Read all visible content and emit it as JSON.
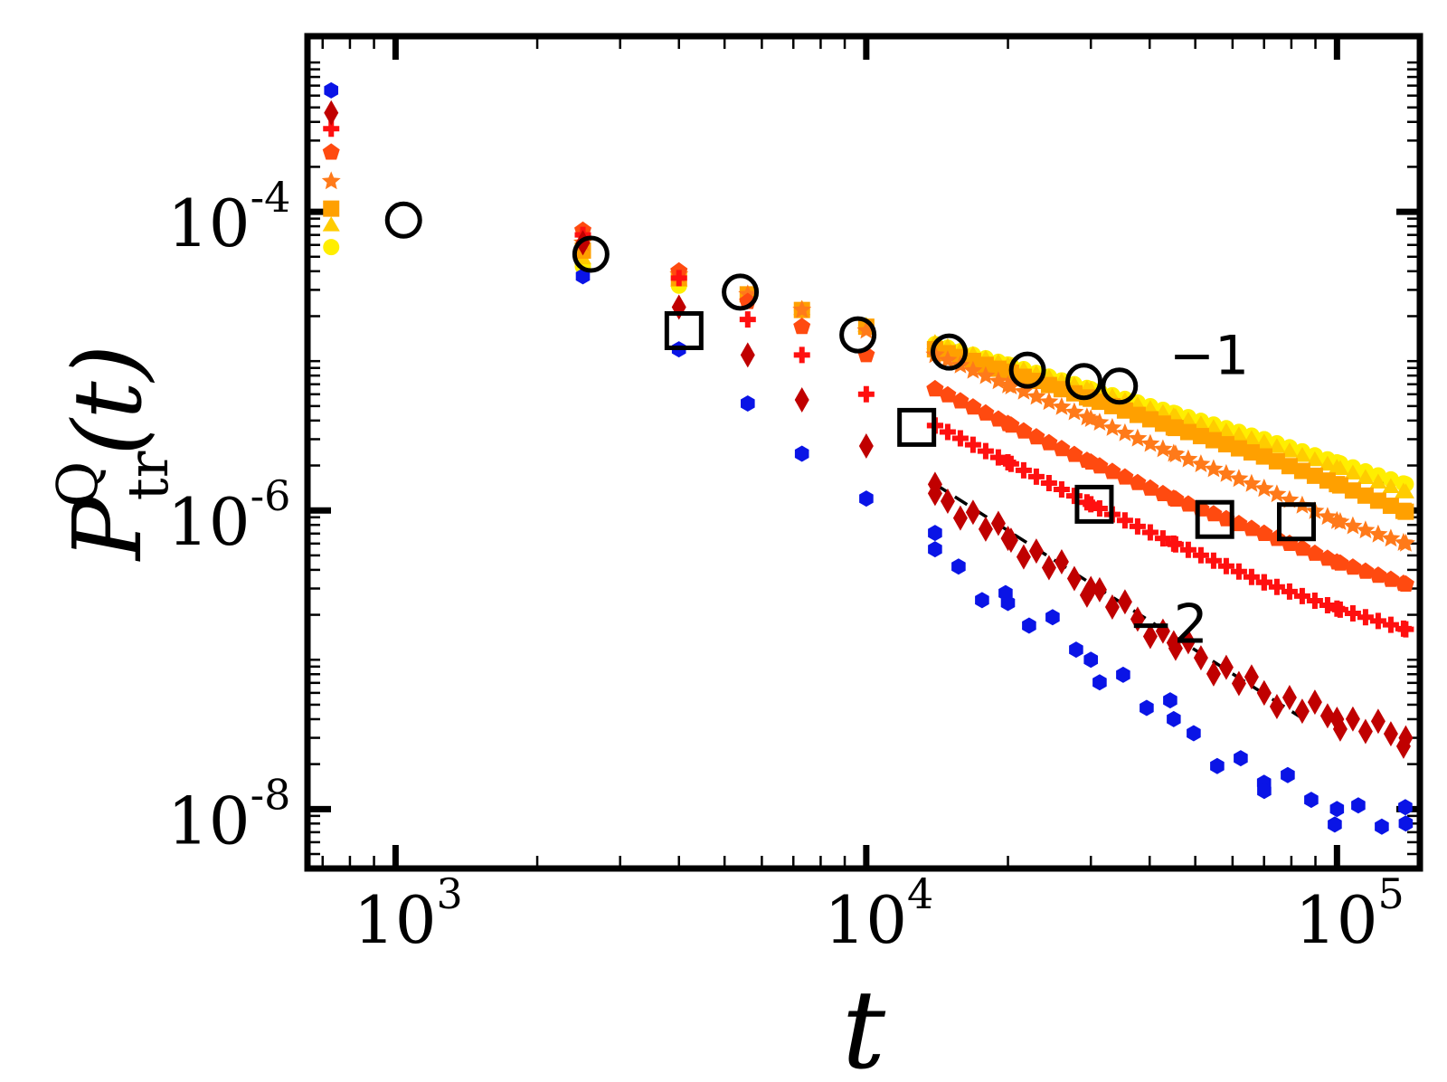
{
  "chart_data": {
    "type": "scatter",
    "scale": "log-log",
    "xlabel": "t",
    "ylabel": {
      "base": "P",
      "sub": "tr",
      "sup": "Q",
      "arg": "(t)"
    },
    "xlim": [
      650,
      150000
    ],
    "ylim": [
      4e-09,
      0.0015
    ],
    "x_ticks": [
      {
        "value": 1000,
        "base": "10",
        "exp": "3"
      },
      {
        "value": 10000,
        "base": "10",
        "exp": "4"
      },
      {
        "value": 100000,
        "base": "10",
        "exp": "5"
      }
    ],
    "y_ticks": [
      {
        "value": 0.0001,
        "base": "10",
        "exp": "-4"
      },
      {
        "value": 1e-06,
        "base": "10",
        "exp": "-6"
      },
      {
        "value": 1e-08,
        "base": "10",
        "exp": "-8"
      }
    ],
    "series": [
      {
        "name": "yellow-circle",
        "marker": "circle",
        "color": "#ffee00",
        "points": [
          [
            730,
            5.8e-05
          ],
          [
            2500,
            4.3e-05
          ],
          [
            4000,
            3.2e-05
          ],
          [
            5600,
            2.6e-05
          ],
          [
            7300,
            2.2e-05
          ],
          [
            10000,
            1.7e-05
          ],
          [
            14000,
            1.3e-05
          ],
          [
            20000,
            9.5e-06
          ],
          [
            30000,
            6.5e-06
          ],
          [
            45000,
            4.5e-06
          ],
          [
            70000,
            3e-06
          ],
          [
            100000,
            2.1e-06
          ],
          [
            140000,
            1.5e-06
          ]
        ]
      },
      {
        "name": "gold-triangle",
        "marker": "triangle",
        "color": "#ffcc00",
        "points": [
          [
            730,
            8e-05
          ],
          [
            2500,
            4.8e-05
          ],
          [
            4000,
            3.4e-05
          ],
          [
            5600,
            2.7e-05
          ],
          [
            7300,
            2.2e-05
          ],
          [
            10000,
            1.7e-05
          ],
          [
            14000,
            1.3e-05
          ],
          [
            20000,
            9.2e-06
          ],
          [
            30000,
            6.3e-06
          ],
          [
            45000,
            4.2e-06
          ],
          [
            70000,
            2.8e-06
          ],
          [
            100000,
            1.9e-06
          ],
          [
            140000,
            1.3e-06
          ]
        ]
      },
      {
        "name": "orange-square",
        "marker": "square",
        "color": "#ffa000",
        "points": [
          [
            730,
            0.000105
          ],
          [
            2500,
            5.5e-05
          ],
          [
            4000,
            3.6e-05
          ],
          [
            5600,
            2.8e-05
          ],
          [
            7300,
            2.2e-05
          ],
          [
            10000,
            1.7e-05
          ],
          [
            14000,
            1.2e-05
          ],
          [
            20000,
            8.5e-06
          ],
          [
            30000,
            5.6e-06
          ],
          [
            45000,
            3.6e-06
          ],
          [
            70000,
            2.3e-06
          ],
          [
            100000,
            1.5e-06
          ],
          [
            140000,
            9.8e-07
          ]
        ]
      },
      {
        "name": "orange-star",
        "marker": "star",
        "color": "#ff7a1a",
        "points": [
          [
            730,
            0.00016
          ],
          [
            2500,
            6.2e-05
          ],
          [
            4000,
            3.8e-05
          ],
          [
            5600,
            2.8e-05
          ],
          [
            7300,
            2.2e-05
          ],
          [
            10000,
            1.6e-05
          ],
          [
            14000,
            1.1e-05
          ],
          [
            20000,
            6.9e-06
          ],
          [
            30000,
            4.1e-06
          ],
          [
            45000,
            2.4e-06
          ],
          [
            70000,
            1.4e-06
          ],
          [
            100000,
            8.5e-07
          ],
          [
            140000,
            6e-07
          ]
        ]
      },
      {
        "name": "red-orange-pentagon",
        "marker": "pentagon",
        "color": "#ff4a10",
        "points": [
          [
            730,
            0.00025
          ],
          [
            2500,
            7.5e-05
          ],
          [
            4000,
            4e-05
          ],
          [
            5600,
            2.5e-05
          ],
          [
            7300,
            1.7e-05
          ],
          [
            10000,
            1.1e-05
          ],
          [
            14000,
            6.5e-06
          ],
          [
            20000,
            3.8e-06
          ],
          [
            30000,
            2.1e-06
          ],
          [
            45000,
            1.2e-06
          ],
          [
            70000,
            7e-07
          ],
          [
            100000,
            4.5e-07
          ],
          [
            140000,
            3.2e-07
          ]
        ]
      },
      {
        "name": "red-cross",
        "marker": "cross",
        "color": "#ff1010",
        "points": [
          [
            730,
            0.00036
          ],
          [
            2500,
            7e-05
          ],
          [
            4000,
            3.6e-05
          ],
          [
            5600,
            1.9e-05
          ],
          [
            7300,
            1.1e-05
          ],
          [
            10000,
            6e-06
          ],
          [
            14000,
            3.7e-06
          ],
          [
            20000,
            2.1e-06
          ],
          [
            30000,
            1.1e-06
          ],
          [
            45000,
            6e-07
          ],
          [
            70000,
            3.3e-07
          ],
          [
            100000,
            2.2e-07
          ],
          [
            140000,
            1.6e-07
          ]
        ]
      },
      {
        "name": "darkred-diamond",
        "marker": "diamond",
        "color": "#c00000",
        "points": [
          [
            730,
            0.00046
          ],
          [
            2500,
            6.2e-05
          ],
          [
            4000,
            2.3e-05
          ],
          [
            5600,
            1.1e-05
          ],
          [
            7300,
            5.5e-06
          ],
          [
            10000,
            2.7e-06
          ],
          [
            14000,
            1.3e-06
          ],
          [
            20000,
            6.5e-07
          ],
          [
            30000,
            3e-07
          ],
          [
            45000,
            1.3e-07
          ],
          [
            70000,
            6e-08
          ],
          [
            100000,
            4e-08
          ],
          [
            140000,
            3e-08
          ]
        ]
      },
      {
        "name": "blue-hexagon",
        "marker": "hexagon",
        "color": "#0a14e6",
        "points": [
          [
            730,
            0.00065
          ],
          [
            2500,
            3.7e-05
          ],
          [
            4000,
            1.2e-05
          ],
          [
            5600,
            5.2e-06
          ],
          [
            7300,
            2.4e-06
          ],
          [
            10000,
            1.2e-06
          ],
          [
            14000,
            5.5e-07
          ],
          [
            20000,
            2.4e-07
          ],
          [
            30000,
            1e-07
          ],
          [
            45000,
            4e-08
          ],
          [
            70000,
            1.5e-08
          ],
          [
            100000,
            1e-08
          ],
          [
            140000,
            8e-09
          ]
        ]
      },
      {
        "name": "black-open-circle",
        "marker": "open-circle",
        "color": "#000000",
        "points": [
          [
            1040,
            8.8e-05
          ],
          [
            2600,
            5.2e-05
          ],
          [
            5400,
            2.9e-05
          ],
          [
            9600,
            1.5e-05
          ],
          [
            15000,
            1.15e-05
          ],
          [
            22000,
            8.7e-06
          ],
          [
            29000,
            7.3e-06
          ],
          [
            34500,
            6.8e-06
          ]
        ]
      },
      {
        "name": "black-open-square",
        "marker": "open-square",
        "color": "#000000",
        "points": [
          [
            4100,
            1.6e-05
          ],
          [
            12800,
            3.6e-06
          ],
          [
            30500,
            1.1e-06
          ],
          [
            55000,
            8.7e-07
          ],
          [
            82000,
            8.4e-07
          ]
        ]
      }
    ],
    "guide_lines": [
      {
        "label": "−1",
        "slope": -1,
        "from": [
          15000,
          1.3e-05
        ],
        "to": [
          140000,
          1.4e-06
        ],
        "label_at": [
          44000,
          8.2e-06
        ]
      },
      {
        "label": "−2",
        "slope": -2,
        "from": [
          14000,
          1.5e-06
        ],
        "to": [
          85000,
          4e-08
        ],
        "label_at": [
          36000,
          1.3e-07
        ]
      }
    ]
  }
}
